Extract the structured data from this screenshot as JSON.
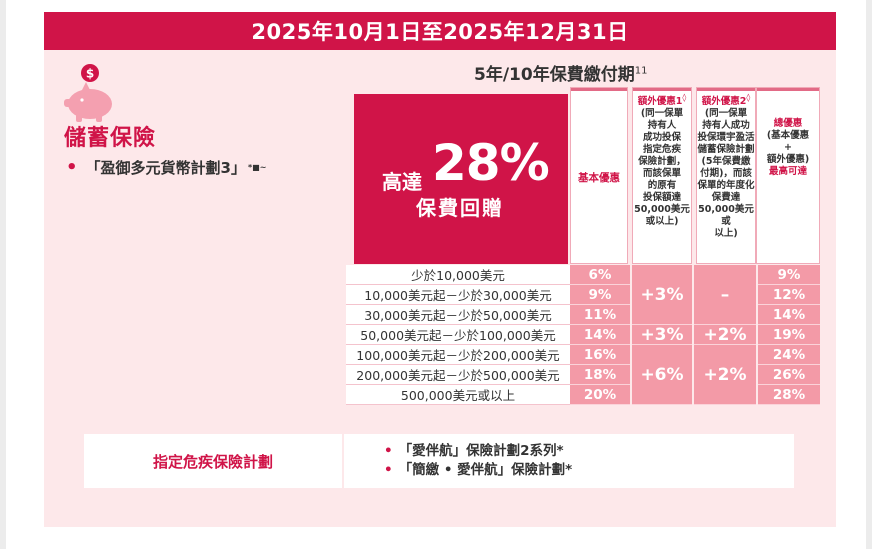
{
  "banner": "2025年10月1日至2025年12月31日",
  "category_title": "儲蓄保險",
  "plan_name": "「盈御多元貨幣計劃3」",
  "plan_sup": "*■~",
  "period_title": "5年/10年保費繳付期",
  "period_sup": "11",
  "promo": {
    "upto": "高達",
    "percent": "28%",
    "rebate": "保費回贈"
  },
  "columns": {
    "basic": "基本優惠",
    "extra1_title": "額外優惠1",
    "extra1_sup": "◊",
    "extra1_lines": [
      "(同一保單",
      "持有人",
      "成功投保",
      "指定危疾",
      "保險計劃，",
      "而該保單",
      "的原有",
      "投保額達",
      "50,000美元",
      "或以上)"
    ],
    "extra2_title": "額外優惠2",
    "extra2_sup": "◊",
    "extra2_lines": [
      "(同一保單",
      "持有人成功",
      "投保環宇盈活",
      "儲蓄保險計劃",
      "(5年保費繳",
      "付期)，而該",
      "保單的年度化",
      "保費達",
      "50,000美元或",
      "以上)"
    ],
    "total_lines": [
      "總優惠",
      "(基本優惠",
      "+",
      "額外優惠)"
    ],
    "total_max": "最高可達"
  },
  "tiers": [
    {
      "range": "少於10,000美元",
      "basic": "6%",
      "total": "9%"
    },
    {
      "range": "10,000美元起－少於30,000美元",
      "basic": "9%",
      "total": "12%"
    },
    {
      "range": "30,000美元起－少於50,000美元",
      "basic": "11%",
      "total": "14%"
    },
    {
      "range": "50,000美元起－少於100,000美元",
      "basic": "14%",
      "total": "19%"
    },
    {
      "range": "100,000美元起－少於200,000美元",
      "basic": "16%",
      "total": "24%"
    },
    {
      "range": "200,000美元起－少於500,000美元",
      "basic": "18%",
      "total": "26%"
    },
    {
      "range": "500,000美元或以上",
      "basic": "20%",
      "total": "28%"
    }
  ],
  "extras": {
    "group1_x1": "+3%",
    "group1_x2": "–",
    "group2_x1": "+3%",
    "group2_x2": "+2%",
    "group3_x1": "+6%",
    "group3_x2": "+2%"
  },
  "critical_illness": {
    "label": "指定危疾保險計劃",
    "items": [
      "「愛伴航」保險計劃2系列*",
      "「簡繳 • 愛伴航」保險計劃*"
    ]
  },
  "colors": {
    "accent": "#d01448",
    "cell": "#f39aa7",
    "panel": "#fde8ea"
  },
  "icons": {
    "pig": "piggy-bank-icon"
  }
}
